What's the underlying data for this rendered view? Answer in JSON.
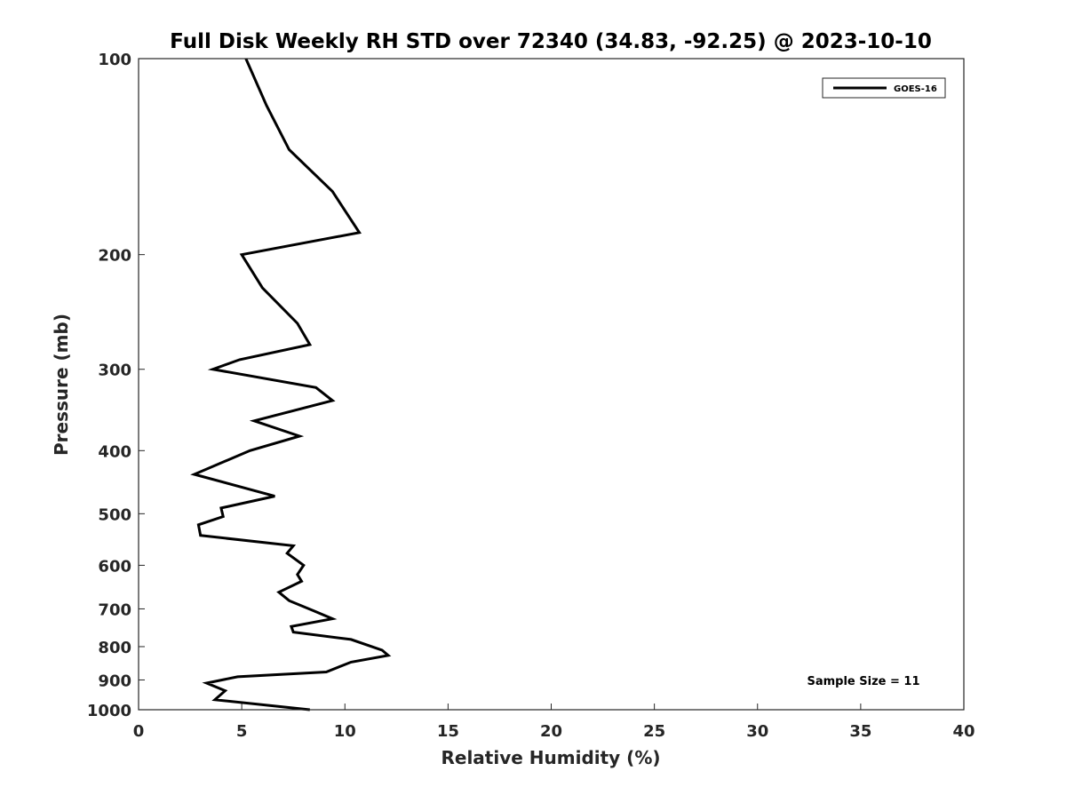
{
  "chart_data": {
    "type": "line",
    "title": "Full Disk Weekly RH STD over 72340 (34.83, -92.25) @ 2023-10-10",
    "xlabel": "Relative Humidity (%)",
    "ylabel": "Pressure (mb)",
    "xlim": [
      0,
      40
    ],
    "ylim": [
      1000,
      100
    ],
    "y_scale": "log",
    "y_reversed": true,
    "grid": false,
    "legend_position": "top-right",
    "xticks": [
      "0",
      "5",
      "10",
      "15",
      "20",
      "25",
      "30",
      "35",
      "40"
    ],
    "yticks": [
      "100",
      "200",
      "300",
      "400",
      "500",
      "600",
      "700",
      "800",
      "900",
      "1000"
    ],
    "series": [
      {
        "name": "GOES-16",
        "color": "#000000",
        "x": [
          5.2,
          6.2,
          7.3,
          9.4,
          10.7,
          5.0,
          6.0,
          7.7,
          8.3,
          4.9,
          3.6,
          8.6,
          9.4,
          5.6,
          7.8,
          5.4,
          2.7,
          6.6,
          4.0,
          4.1,
          2.9,
          3.0,
          7.5,
          7.2,
          8.0,
          7.7,
          7.9,
          6.8,
          7.3,
          8.5,
          9.4,
          7.4,
          7.5,
          10.3,
          11.8,
          12.1,
          10.3,
          9.1,
          4.8,
          3.3,
          4.2,
          3.7,
          8.3
        ],
        "y": [
          100,
          118,
          138,
          160,
          185,
          200,
          225,
          255,
          275,
          290,
          300,
          320,
          335,
          360,
          380,
          400,
          435,
          470,
          490,
          505,
          520,
          540,
          560,
          575,
          600,
          620,
          635,
          660,
          680,
          705,
          725,
          745,
          760,
          780,
          810,
          825,
          845,
          875,
          890,
          910,
          935,
          965,
          1000
        ]
      }
    ],
    "annotation": "Sample Size = 11"
  }
}
